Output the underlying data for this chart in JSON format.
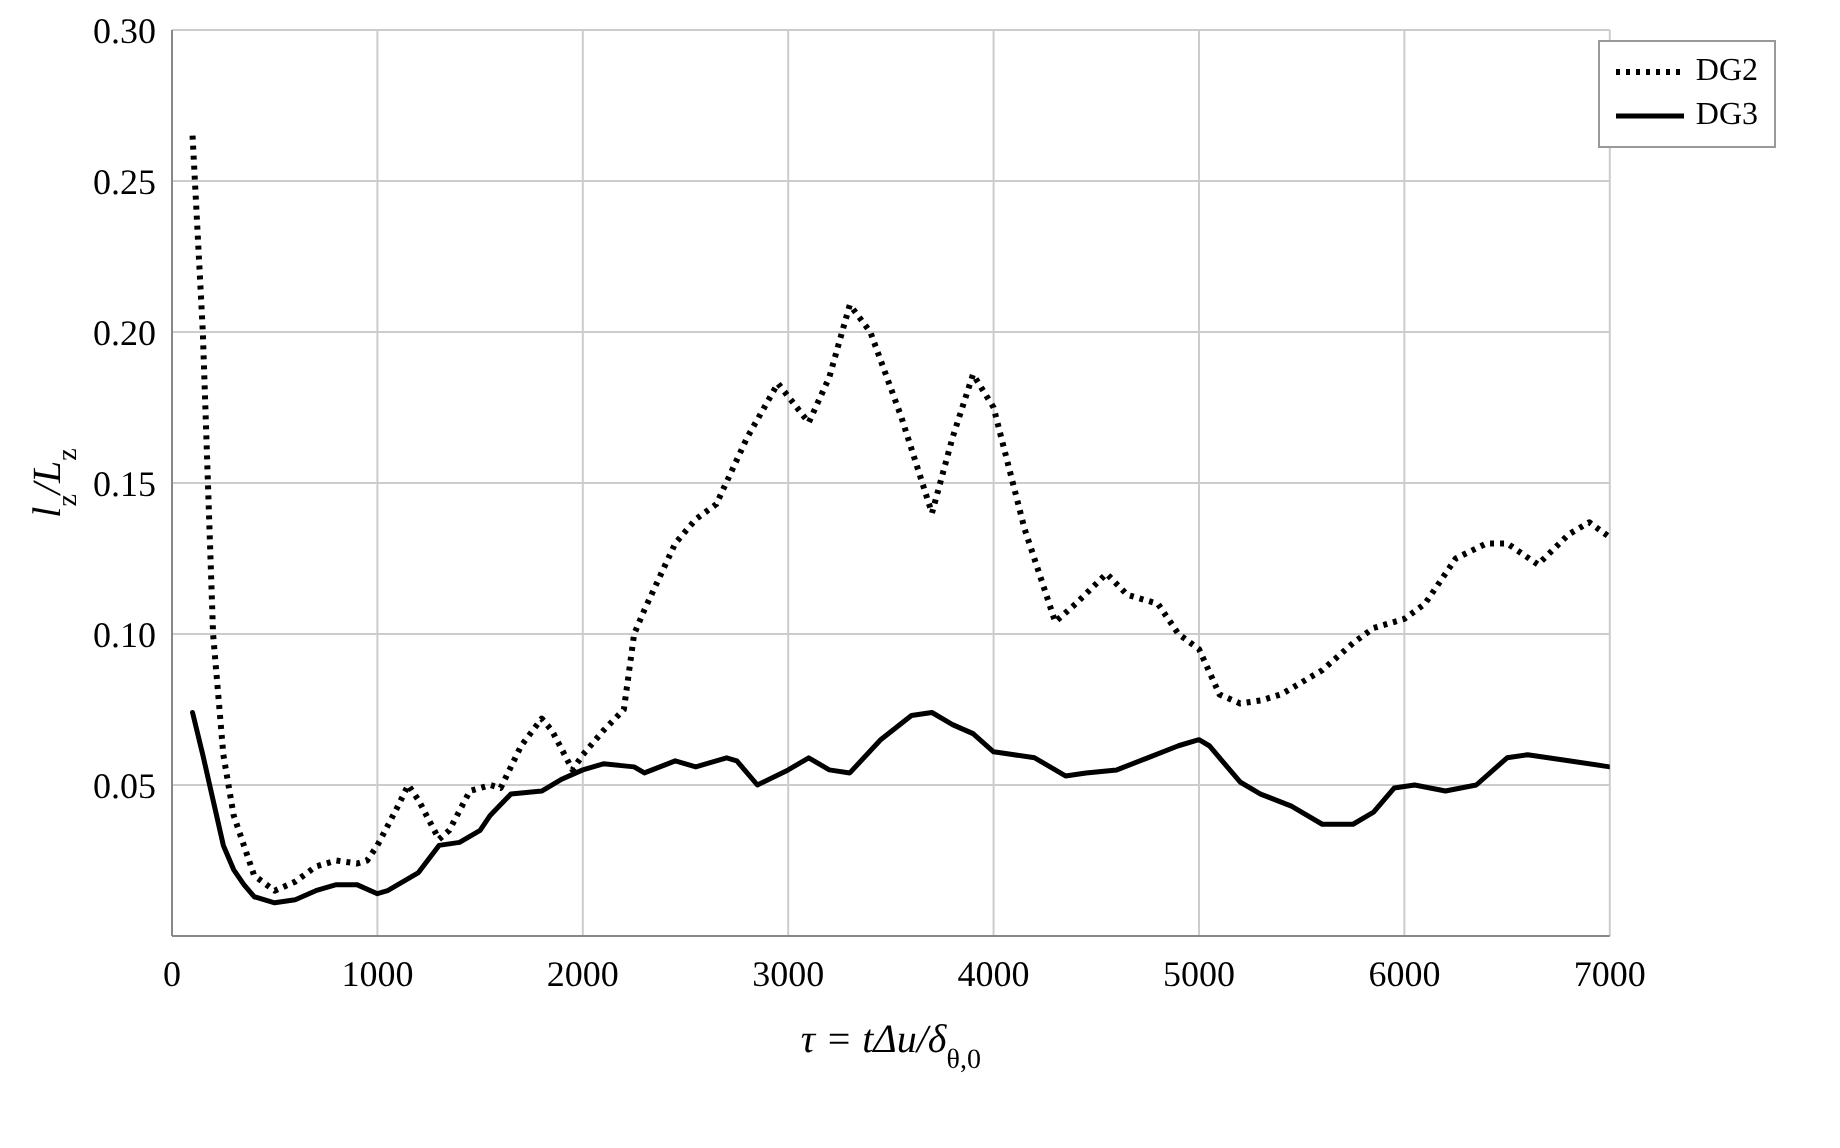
{
  "chart_data": {
    "type": "line",
    "xlabel": "τ = tΔu/δ$_{θ,0}$",
    "ylabel": "l$_{z}$/L$_{z}$",
    "xlim": [
      0,
      7000
    ],
    "xticks": [
      0,
      1000,
      2000,
      3000,
      4000,
      5000,
      6000,
      7000
    ],
    "ylim": [
      0,
      0.3
    ],
    "yticks": [
      {
        "value": 0.05,
        "label": "0.05"
      },
      {
        "value": 0.1,
        "label": "0.10"
      },
      {
        "value": 0.15,
        "label": "0.15"
      },
      {
        "value": 0.2,
        "label": "0.20"
      },
      {
        "value": 0.25,
        "label": "0.25"
      },
      {
        "value": 0.3,
        "label": "0.30"
      }
    ],
    "grid": true,
    "legend": "top right",
    "marker": "none",
    "series": [
      {
        "name": "DG2",
        "color": "#000000",
        "line_style": "dotted",
        "x": [
          100,
          150,
          200,
          250,
          300,
          400,
          500,
          600,
          700,
          800,
          900,
          950,
          1000,
          1100,
          1150,
          1200,
          1300,
          1350,
          1450,
          1550,
          1600,
          1700,
          1800,
          1850,
          1950,
          2000,
          2100,
          2200,
          2250,
          2300,
          2450,
          2550,
          2650,
          2800,
          2950,
          3100,
          3200,
          3300,
          3400,
          3550,
          3700,
          3800,
          3900,
          4000,
          4150,
          4300,
          4400,
          4550,
          4650,
          4800,
          4900,
          5000,
          5100,
          5200,
          5300,
          5400,
          5600,
          5750,
          5850,
          6000,
          6100,
          6250,
          6400,
          6500,
          6650,
          6800,
          6900,
          7000
        ],
        "values": [
          0.265,
          0.2,
          0.1,
          0.06,
          0.04,
          0.02,
          0.015,
          0.018,
          0.023,
          0.025,
          0.024,
          0.025,
          0.03,
          0.043,
          0.05,
          0.045,
          0.032,
          0.035,
          0.048,
          0.05,
          0.049,
          0.063,
          0.072,
          0.068,
          0.055,
          0.06,
          0.068,
          0.075,
          0.1,
          0.108,
          0.13,
          0.138,
          0.143,
          0.165,
          0.183,
          0.17,
          0.185,
          0.209,
          0.2,
          0.172,
          0.14,
          0.165,
          0.186,
          0.175,
          0.135,
          0.104,
          0.11,
          0.12,
          0.113,
          0.11,
          0.1,
          0.095,
          0.08,
          0.077,
          0.078,
          0.08,
          0.088,
          0.097,
          0.102,
          0.105,
          0.11,
          0.125,
          0.13,
          0.13,
          0.123,
          0.133,
          0.137,
          0.132
        ]
      },
      {
        "name": "DG3",
        "color": "#000000",
        "line_style": "solid",
        "x": [
          100,
          150,
          200,
          250,
          300,
          350,
          400,
          500,
          600,
          700,
          800,
          900,
          1000,
          1050,
          1200,
          1300,
          1400,
          1500,
          1550,
          1650,
          1800,
          1900,
          2000,
          2100,
          2250,
          2300,
          2450,
          2550,
          2700,
          2750,
          2850,
          3000,
          3100,
          3200,
          3300,
          3450,
          3600,
          3700,
          3800,
          3900,
          4000,
          4100,
          4200,
          4350,
          4450,
          4600,
          4750,
          4900,
          5000,
          5050,
          5200,
          5300,
          5450,
          5600,
          5750,
          5850,
          5950,
          6050,
          6200,
          6350,
          6500,
          6600,
          6800,
          7000
        ],
        "values": [
          0.074,
          0.06,
          0.045,
          0.03,
          0.022,
          0.017,
          0.013,
          0.011,
          0.012,
          0.015,
          0.017,
          0.017,
          0.014,
          0.015,
          0.021,
          0.03,
          0.031,
          0.035,
          0.04,
          0.047,
          0.048,
          0.052,
          0.055,
          0.057,
          0.056,
          0.054,
          0.058,
          0.056,
          0.059,
          0.058,
          0.05,
          0.055,
          0.059,
          0.055,
          0.054,
          0.065,
          0.073,
          0.074,
          0.07,
          0.067,
          0.061,
          0.06,
          0.059,
          0.053,
          0.054,
          0.055,
          0.059,
          0.063,
          0.065,
          0.063,
          0.051,
          0.047,
          0.043,
          0.037,
          0.037,
          0.041,
          0.049,
          0.05,
          0.048,
          0.05,
          0.059,
          0.06,
          0.058,
          0.056
        ]
      }
    ]
  }
}
